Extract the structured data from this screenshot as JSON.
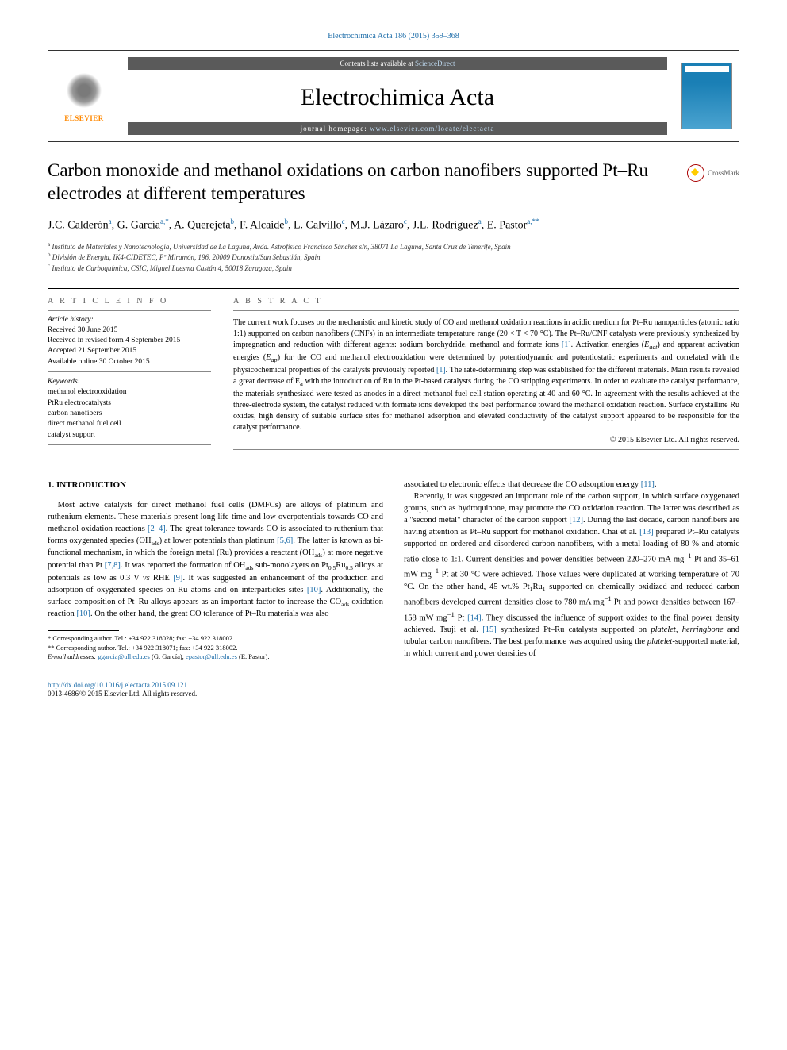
{
  "colors": {
    "link": "#1a6ba8",
    "text": "#000000",
    "bar_bg": "#5a5a5a",
    "elsevier_orange": "#ff8800",
    "cover_blue": "#1a7fb5"
  },
  "topCitation": "Electrochimica Acta 186 (2015) 359–368",
  "header": {
    "contents_line_prefix": "Contents lists available at ",
    "contents_line_link": "ScienceDirect",
    "journal_title": "Electrochimica Acta",
    "homepage_prefix": "journal homepage: ",
    "homepage_url": "www.elsevier.com/locate/electacta",
    "publisher": "ELSEVIER"
  },
  "crossmark": "CrossMark",
  "title": "Carbon monoxide and methanol oxidations on carbon nanofibers supported Pt–Ru electrodes at different temperatures",
  "authors_html": "J.C. Calderón<sup>a</sup>, G. García<sup>a,*</sup>, A. Querejeta<sup>b</sup>, F. Alcaide<sup>b</sup>, L. Calvillo<sup>c</sup>, M.J. Lázaro<sup>c</sup>, J.L. Rodríguez<sup>a</sup>, E. Pastor<sup>a,**</sup>",
  "affiliations": [
    {
      "sup": "a",
      "text": "Instituto de Materiales y Nanotecnología, Universidad de La Laguna, Avda. Astrofísico Francisco Sánchez s/n, 38071 La Laguna, Santa Cruz de Tenerife, Spain"
    },
    {
      "sup": "b",
      "text": "División de Energía, IK4-CIDETEC, Pº Miramón, 196, 20009 Donostia/San Sebastián, Spain"
    },
    {
      "sup": "c",
      "text": "Instituto de Carboquímica, CSIC, Miguel Luesma Castán 4, 50018 Zaragoza, Spain"
    }
  ],
  "info": {
    "section_label": "A R T I C L E   I N F O",
    "history_label": "Article history:",
    "history": [
      "Received 30 June 2015",
      "Received in revised form 4 September 2015",
      "Accepted 21 September 2015",
      "Available online 30 October 2015"
    ],
    "keywords_label": "Keywords:",
    "keywords": [
      "methanol electrooxidation",
      "PtRu electrocatalysts",
      "carbon nanofibers",
      "direct methanol fuel cell",
      "catalyst support"
    ]
  },
  "abstract": {
    "section_label": "A B S T R A C T",
    "text_html": "The current work focuses on the mechanistic and kinetic study of CO and methanol oxidation reactions in acidic medium for Pt–Ru nanoparticles (atomic ratio 1:1) supported on carbon nanofibers (CNFs) in an intermediate temperature range (20 &lt; T &lt; 70 °C). The Pt–Ru/CNF catalysts were previously synthesized by impregnation and reduction with different agents: sodium borohydride, methanol and formate ions <span class=\"ref\">[1]</span>. Activation energies (<i>E<sub>act</sub></i>) and apparent activation energies (<i>E<sub>ap</sub></i>) for the CO and methanol electrooxidation were determined by potentiodynamic and potentiostatic experiments and correlated with the physicochemical properties of the catalysts previously reported <span class=\"ref\">[1]</span>. The rate-determining step was established for the different materials. Main results revealed a great decrease of E<sub>a</sub> with the introduction of Ru in the Pt-based catalysts during the CO stripping experiments. In order to evaluate the catalyst performance, the materials synthesized were tested as anodes in a direct methanol fuel cell station operating at 40 and 60 °C. In agreement with the results achieved at the three-electrode system, the catalyst reduced with formate ions developed the best performance toward the methanol oxidation reaction. Surface crystalline Ru oxides, high density of suitable surface sites for methanol adsorption and elevated conductivity of the catalyst support appeared to be responsible for the catalyst performance.",
    "copyright": "© 2015 Elsevier Ltd. All rights reserved."
  },
  "body": {
    "intro_heading": "1. INTRODUCTION",
    "p1_html": "Most active catalysts for direct methanol fuel cells (DMFCs) are alloys of platinum and ruthenium elements. These materials present long life-time and low overpotentials towards CO and methanol oxidation reactions <span class=\"ref\">[2–4]</span>. The great tolerance towards CO is associated to ruthenium that forms oxygenated species (OH<sub>ads</sub>) at lower potentials than platinum <span class=\"ref\">[5,6]</span>. The latter is known as bi-functional mechanism, in which the foreign metal (Ru) provides a reactant (OH<sub>ads</sub>) at more negative potential than Pt <span class=\"ref\">[7,8]</span>. It was reported the formation of OH<sub>ads</sub> sub-monolayers on Pt<sub>0.5</sub>Ru<sub>0.5</sub> alloys at potentials as low as 0.3 V <i>vs</i> RHE <span class=\"ref\">[9]</span>. It was suggested an enhancement of the production and adsorption of oxygenated species on Ru atoms and on interparticles sites <span class=\"ref\">[10]</span>. Additionally, the surface composition of Pt–Ru alloys appears as an important factor to increase the CO<sub>ads</sub> oxidation reaction <span class=\"ref\">[10]</span>. On the other hand, the great CO tolerance of Pt–Ru materials was also",
    "p2_html": "associated to electronic effects that decrease the CO adsorption energy <span class=\"ref\">[11]</span>.",
    "p3_html": "Recently, it was suggested an important role of the carbon support, in which surface oxygenated groups, such as hydroquinone, may promote the CO oxidation reaction. The latter was described as a \"second metal\" character of the carbon support <span class=\"ref\">[12]</span>. During the last decade, carbon nanofibers are having attention as Pt–Ru support for methanol oxidation. Chai et al. <span class=\"ref\">[13]</span> prepared Pt–Ru catalysts supported on ordered and disordered carbon nanofibers, with a metal loading of 80 % and atomic ratio close to 1:1. Current densities and power densities between 220–270 mA mg<sup>−1</sup> Pt and 35–61 mW mg<sup>−1</sup> Pt at 30 °C were achieved. Those values were duplicated at working temperature of 70 °C. On the other hand, 45 wt.% Pt<sub>1</sub>Ru<sub>1</sub> supported on chemically oxidized and reduced carbon nanofibers developed current densities close to 780 mA mg<sup>−1</sup> Pt and power densities between 167–158 mW mg<sup>−1</sup> Pt <span class=\"ref\">[14]</span>. They discussed the influence of support oxides to the final power density achieved. Tsuji et al. <span class=\"ref\">[15]</span> synthesized Pt–Ru catalysts supported on <i>platelet, herringbone</i> and tubular carbon nanofibers. The best performance was acquired using the <i>platelet</i>-supported material, in which current and power densities of"
  },
  "footnotes": {
    "f1": "* Corresponding author. Tel.: +34 922 318028; fax: +34 922 318002.",
    "f2": "** Corresponding author. Tel.: +34 922 318071; fax: +34 922 318002.",
    "emails_label": "E-mail addresses: ",
    "email1": "ggarcia@ull.edu.es",
    "email1_who": " (G. García), ",
    "email2": "epastor@ull.edu.es",
    "email2_who": " (E. Pastor)."
  },
  "footer": {
    "doi": "http://dx.doi.org/10.1016/j.electacta.2015.09.121",
    "issn_line": "0013-4686/© 2015 Elsevier Ltd. All rights reserved."
  }
}
